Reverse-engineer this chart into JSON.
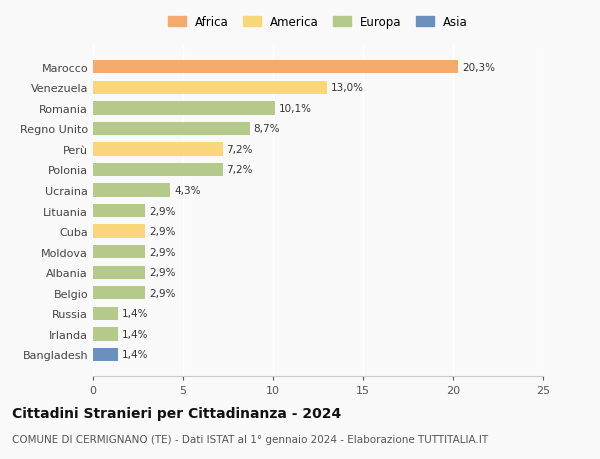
{
  "categories": [
    "Marocco",
    "Venezuela",
    "Romania",
    "Regno Unito",
    "Perù",
    "Polonia",
    "Ucraina",
    "Lituania",
    "Cuba",
    "Moldova",
    "Albania",
    "Belgio",
    "Russia",
    "Irlanda",
    "Bangladesh"
  ],
  "values": [
    20.3,
    13.0,
    10.1,
    8.7,
    7.2,
    7.2,
    4.3,
    2.9,
    2.9,
    2.9,
    2.9,
    2.9,
    1.4,
    1.4,
    1.4
  ],
  "labels": [
    "20,3%",
    "13,0%",
    "10,1%",
    "8,7%",
    "7,2%",
    "7,2%",
    "4,3%",
    "2,9%",
    "2,9%",
    "2,9%",
    "2,9%",
    "2,9%",
    "1,4%",
    "1,4%",
    "1,4%"
  ],
  "colors": [
    "#f4a96d",
    "#f9d67a",
    "#b5c98a",
    "#b5c98a",
    "#f9d67a",
    "#b5c98a",
    "#b5c98a",
    "#b5c98a",
    "#f9d67a",
    "#b5c98a",
    "#b5c98a",
    "#b5c98a",
    "#b5c98a",
    "#b5c98a",
    "#6b8fbf"
  ],
  "legend": {
    "Africa": "#f4a96d",
    "America": "#f9d67a",
    "Europa": "#b5c98a",
    "Asia": "#6b8fbf"
  },
  "xlim": [
    0,
    25
  ],
  "xticks": [
    0,
    5,
    10,
    15,
    20,
    25
  ],
  "title": "Cittadini Stranieri per Cittadinanza - 2024",
  "subtitle": "COMUNE DI CERMIGNANO (TE) - Dati ISTAT al 1° gennaio 2024 - Elaborazione TUTTITALIA.IT",
  "bg_color": "#f9f9f9",
  "bar_height": 0.65,
  "label_fontsize": 7.5,
  "title_fontsize": 10,
  "subtitle_fontsize": 7.5,
  "ytick_fontsize": 8,
  "xtick_fontsize": 8
}
